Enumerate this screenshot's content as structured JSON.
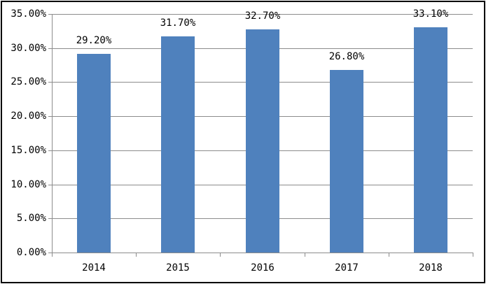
{
  "chart_data": {
    "type": "bar",
    "title": "",
    "xlabel": "",
    "ylabel": "",
    "categories": [
      "2014",
      "2015",
      "2016",
      "2017",
      "2018"
    ],
    "values": [
      29.2,
      31.7,
      32.7,
      26.8,
      33.1
    ],
    "data_labels": [
      "29.20%",
      "31.70%",
      "32.70%",
      "26.80%",
      "33.10%"
    ],
    "y_tick_labels": [
      "0.00%",
      "5.00%",
      "10.00%",
      "15.00%",
      "20.00%",
      "25.00%",
      "30.00%",
      "35.00%"
    ],
    "ylim": [
      0,
      35
    ],
    "y_step": 5,
    "grid": true,
    "legend_position": "none",
    "bar_color": "#4f81bd",
    "gridline_color": "#8c8c8c",
    "axis_color": "#8c8c8c",
    "label_color": "#000000",
    "background_color": "#ffffff",
    "border_color": "#000000"
  }
}
